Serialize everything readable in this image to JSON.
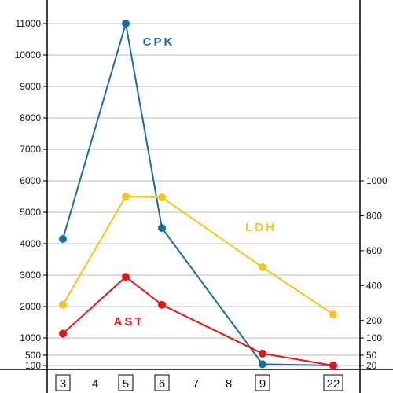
{
  "chart_data": {
    "type": "line",
    "title": "",
    "xlabel": "",
    "ylabel": "",
    "x_ticks": [
      "3",
      "4",
      "5",
      "6",
      "7",
      "8",
      "9",
      "22"
    ],
    "boxed_x_ticks": [
      "3",
      "5",
      "6",
      "9",
      "22"
    ],
    "left_axis": {
      "ticks": [
        "100",
        "500",
        "1000",
        "2000",
        "3000",
        "4000",
        "5000",
        "6000",
        "7000",
        "8000",
        "9000",
        "10000",
        "11000"
      ]
    },
    "right_axis": {
      "ticks": [
        "20",
        "50",
        "100",
        "200",
        "400",
        "600",
        "800",
        "1000"
      ]
    },
    "grid": true,
    "series": [
      {
        "name": "CPK",
        "axis": "left",
        "color": "#1a6aa8",
        "points": [
          {
            "x": "3",
            "y": 4150
          },
          {
            "x": "5",
            "y": 11000
          },
          {
            "x": "6",
            "y": 4500
          },
          {
            "x": "9",
            "y": 150
          },
          {
            "x": "22",
            "y": 100
          }
        ]
      },
      {
        "name": "LDH",
        "axis": "right",
        "color": "#f5c518",
        "points": [
          {
            "x": "3",
            "y": 290
          },
          {
            "x": "5",
            "y": 910
          },
          {
            "x": "6",
            "y": 905
          },
          {
            "x": "9",
            "y": 505
          },
          {
            "x": "22",
            "y": 235
          }
        ]
      },
      {
        "name": "AST",
        "axis": "right",
        "color": "#e81414",
        "points": [
          {
            "x": "3",
            "y": 125
          },
          {
            "x": "5",
            "y": 450
          },
          {
            "x": "6",
            "y": 290
          },
          {
            "x": "9",
            "y": 55
          },
          {
            "x": "22",
            "y": 20
          }
        ]
      }
    ]
  }
}
